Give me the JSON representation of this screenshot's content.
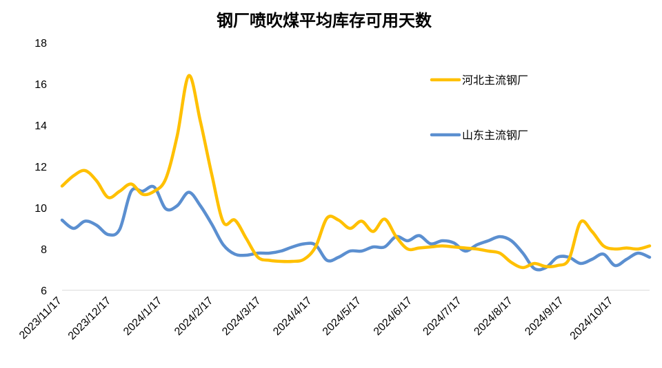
{
  "chart_data": {
    "type": "line",
    "title": "钢厂喷吹煤平均库存可用天数",
    "xlabel": "",
    "ylabel": "",
    "ylim": [
      6,
      18
    ],
    "yticks": [
      6,
      8,
      10,
      12,
      14,
      16,
      18
    ],
    "grid": false,
    "legend_position": "top-right",
    "x_tick_labels": [
      "2023/11/17",
      "2023/12/17",
      "2024/1/17",
      "2024/2/17",
      "2024/3/17",
      "2024/4/17",
      "2024/5/17",
      "2024/6/17",
      "2024/7/17",
      "2024/8/17",
      "2024/9/17",
      "2024/10/17"
    ],
    "x_tick_index": [
      0,
      4.286,
      8.714,
      13.143,
      17.286,
      21.714,
      26.0,
      30.429,
      34.714,
      39.143,
      43.571,
      47.857
    ],
    "x_range": [
      0,
      51
    ],
    "series": [
      {
        "name": "河北主流钢厂",
        "color": "#FFC000",
        "values": [
          11.05,
          11.55,
          11.8,
          11.3,
          10.5,
          10.8,
          11.15,
          10.65,
          10.8,
          11.4,
          13.5,
          16.4,
          14.2,
          11.6,
          9.3,
          9.4,
          8.5,
          7.6,
          7.45,
          7.4,
          7.4,
          7.5,
          8.1,
          9.5,
          9.4,
          9.0,
          9.35,
          8.85,
          9.45,
          8.6,
          8.0,
          8.05,
          8.1,
          8.15,
          8.1,
          8.05,
          8.0,
          7.9,
          7.8,
          7.35,
          7.1,
          7.3,
          7.15,
          7.2,
          7.5,
          9.3,
          8.85,
          8.15,
          8.0,
          8.05,
          8.0,
          8.15
        ]
      },
      {
        "name": "山东主流钢厂",
        "color": "#5B8FD0",
        "values": [
          9.4,
          9.0,
          9.35,
          9.15,
          8.7,
          8.95,
          10.8,
          10.8,
          11.0,
          9.95,
          10.1,
          10.75,
          10.1,
          9.2,
          8.2,
          7.75,
          7.7,
          7.8,
          7.8,
          7.9,
          8.1,
          8.25,
          8.2,
          7.45,
          7.6,
          7.9,
          7.9,
          8.1,
          8.1,
          8.6,
          8.4,
          8.65,
          8.25,
          8.4,
          8.3,
          7.9,
          8.2,
          8.4,
          8.6,
          8.4,
          7.8,
          7.05,
          7.1,
          7.6,
          7.6,
          7.3,
          7.5,
          7.75,
          7.2,
          7.5,
          7.8,
          7.6
        ]
      }
    ]
  }
}
